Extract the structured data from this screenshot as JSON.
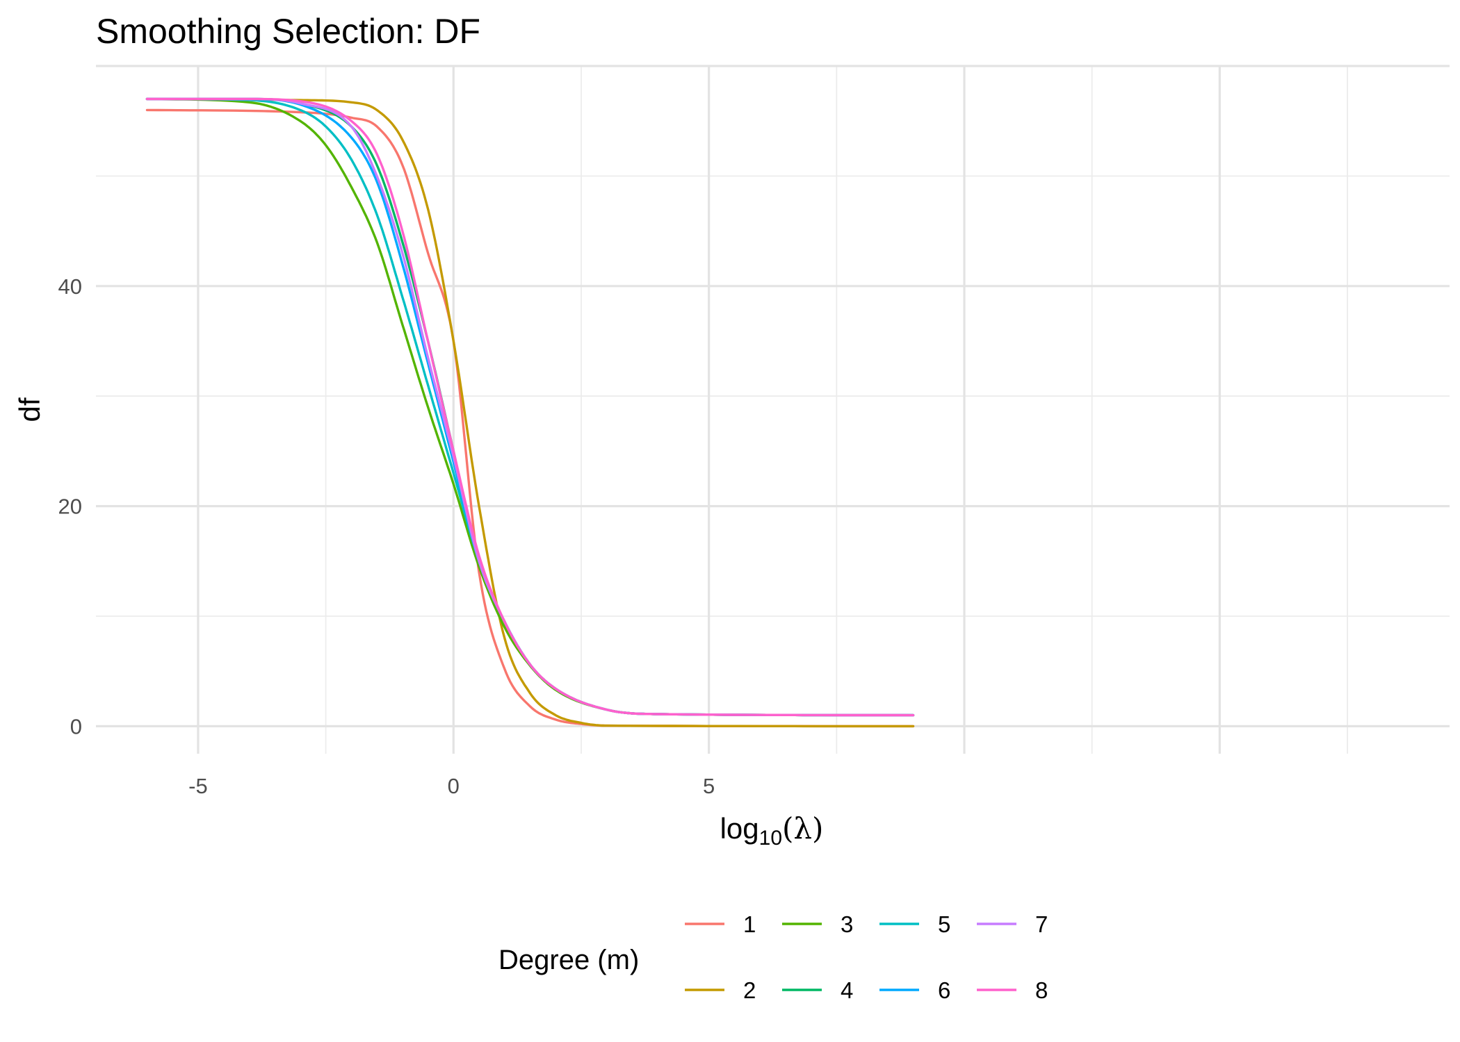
{
  "chart_data": {
    "type": "line",
    "title": "Smoothing Selection: DF",
    "xlabel": "log10(λ)",
    "ylabel": "df",
    "xlim": [
      -7,
      19.5
    ],
    "ylim": [
      -2.5,
      60
    ],
    "x_ticks": [
      {
        "value": -5,
        "label": "-5"
      },
      {
        "value": 0,
        "label": "0"
      },
      {
        "value": 5,
        "label": "5"
      }
    ],
    "y_ticks": [
      {
        "value": 0,
        "label": "0"
      },
      {
        "value": 20,
        "label": "20"
      },
      {
        "value": 40,
        "label": "40"
      }
    ],
    "grid": true,
    "legend": {
      "title": "Degree (m)",
      "position": "bottom"
    },
    "series": [
      {
        "name": "1",
        "color": "#F8766D",
        "x": [
          -6,
          -3,
          -2,
          -1.5,
          -1,
          -0.5,
          0,
          0.5,
          1,
          1.5,
          2,
          2.5,
          3,
          9
        ],
        "y": [
          56,
          55.8,
          55.3,
          54.5,
          51,
          43,
          35,
          14,
          5.2,
          1.8,
          0.6,
          0.2,
          0.05,
          0
        ]
      },
      {
        "name": "2",
        "color": "#C49A00",
        "x": [
          -6,
          -3,
          -2,
          -1.5,
          -1,
          -0.5,
          0,
          0.5,
          1,
          1.5,
          2,
          2.5,
          3,
          9
        ],
        "y": [
          57,
          56.9,
          56.7,
          56,
          53.3,
          47,
          35,
          20,
          8,
          3,
          1,
          0.3,
          0.05,
          0
        ]
      },
      {
        "name": "3",
        "color": "#53B400",
        "x": [
          -6,
          -4,
          -3,
          -2.5,
          -2,
          -1.5,
          -1,
          -0.5,
          0,
          0.5,
          1,
          1.5,
          2,
          3,
          4,
          9
        ],
        "y": [
          57,
          56.7,
          55,
          52.8,
          49,
          44,
          36.5,
          29,
          22,
          14.5,
          9,
          5.5,
          3.3,
          1.5,
          1.1,
          1
        ]
      },
      {
        "name": "4",
        "color": "#00B864",
        "x": [
          -6,
          -4,
          -3,
          -2,
          -1.5,
          -1,
          -0.5,
          0,
          0.5,
          1,
          1.5,
          2,
          3,
          4,
          9
        ],
        "y": [
          57,
          57,
          56.6,
          54.5,
          51,
          44,
          35,
          25,
          15,
          9.5,
          5.6,
          3.4,
          1.5,
          1.1,
          1
        ]
      },
      {
        "name": "5",
        "color": "#00BFC4",
        "x": [
          -6,
          -4,
          -3,
          -2.5,
          -2,
          -1.5,
          -1,
          -0.5,
          0,
          0.5,
          1,
          1.5,
          2,
          3,
          4,
          9
        ],
        "y": [
          57,
          56.9,
          56,
          54.5,
          51.5,
          46.5,
          39,
          31,
          23,
          15,
          9.5,
          5.6,
          3.4,
          1.5,
          1.1,
          1
        ]
      },
      {
        "name": "6",
        "color": "#00A9FF",
        "x": [
          -6,
          -4,
          -3,
          -2,
          -1.5,
          -1,
          -0.5,
          0,
          0.5,
          1,
          1.5,
          2,
          3,
          4,
          9
        ],
        "y": [
          57,
          57,
          56.5,
          53.5,
          49.5,
          42,
          33,
          24,
          15,
          9.5,
          5.6,
          3.4,
          1.5,
          1.1,
          1
        ]
      },
      {
        "name": "7",
        "color": "#C77CFF",
        "x": [
          -6,
          -4,
          -3,
          -2,
          -1.5,
          -1,
          -0.5,
          0,
          0.5,
          1,
          1.5,
          2,
          3,
          4,
          9
        ],
        "y": [
          57,
          57,
          56.6,
          54.5,
          50,
          43,
          33.5,
          24.5,
          15,
          9.5,
          5.6,
          3.4,
          1.5,
          1.1,
          1
        ]
      },
      {
        "name": "8",
        "color": "#FF61CC",
        "x": [
          -6,
          -4,
          -3,
          -2,
          -1.5,
          -1,
          -0.5,
          0,
          0.5,
          1,
          1.5,
          2,
          3,
          4,
          9
        ],
        "y": [
          57,
          57,
          56.8,
          55,
          52,
          45,
          35,
          25,
          15.5,
          9.5,
          5.6,
          3.4,
          1.5,
          1.1,
          1
        ]
      }
    ]
  }
}
